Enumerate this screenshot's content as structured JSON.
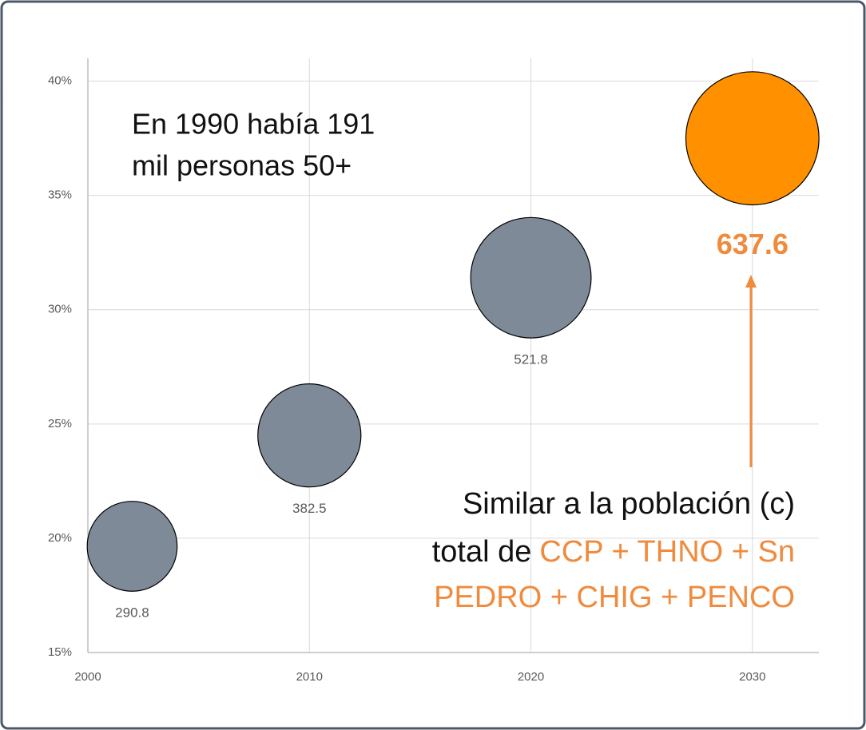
{
  "chart_data": {
    "type": "bubble",
    "x": [
      2002,
      2010,
      2020,
      2030
    ],
    "series": [
      {
        "values": [
          19.65,
          24.5,
          31.4,
          37.5
        ],
        "sizes": [
          290.8,
          382.5,
          521.8,
          637.6
        ],
        "colors": [
          "#7f8a99",
          "#7f8a99",
          "#7f8a99",
          "#ff9100"
        ],
        "value_label_colors": [
          "#595959",
          "#595959",
          "#595959",
          "#f08a3c"
        ]
      }
    ],
    "xlim": [
      2000,
      2033
    ],
    "ylim": [
      15,
      41
    ],
    "xticks": [
      2000,
      2010,
      2020,
      2030
    ],
    "yticks": [
      {
        "value": 15,
        "label": "15%"
      },
      {
        "value": 20,
        "label": "20%"
      },
      {
        "value": 25,
        "label": "25%"
      },
      {
        "value": 30,
        "label": "30%"
      },
      {
        "value": 35,
        "label": "35%"
      },
      {
        "value": 40,
        "label": "40%"
      }
    ],
    "grid": true,
    "annotations": [
      {
        "lines": [
          "En 1990 había 191",
          "mil personas 50+"
        ]
      },
      {
        "lines": [
          "Similar a la población (c)",
          "total de",
          "CCP + THNO + Sn",
          "PEDRO + CHIG + PENCO"
        ]
      }
    ]
  }
}
